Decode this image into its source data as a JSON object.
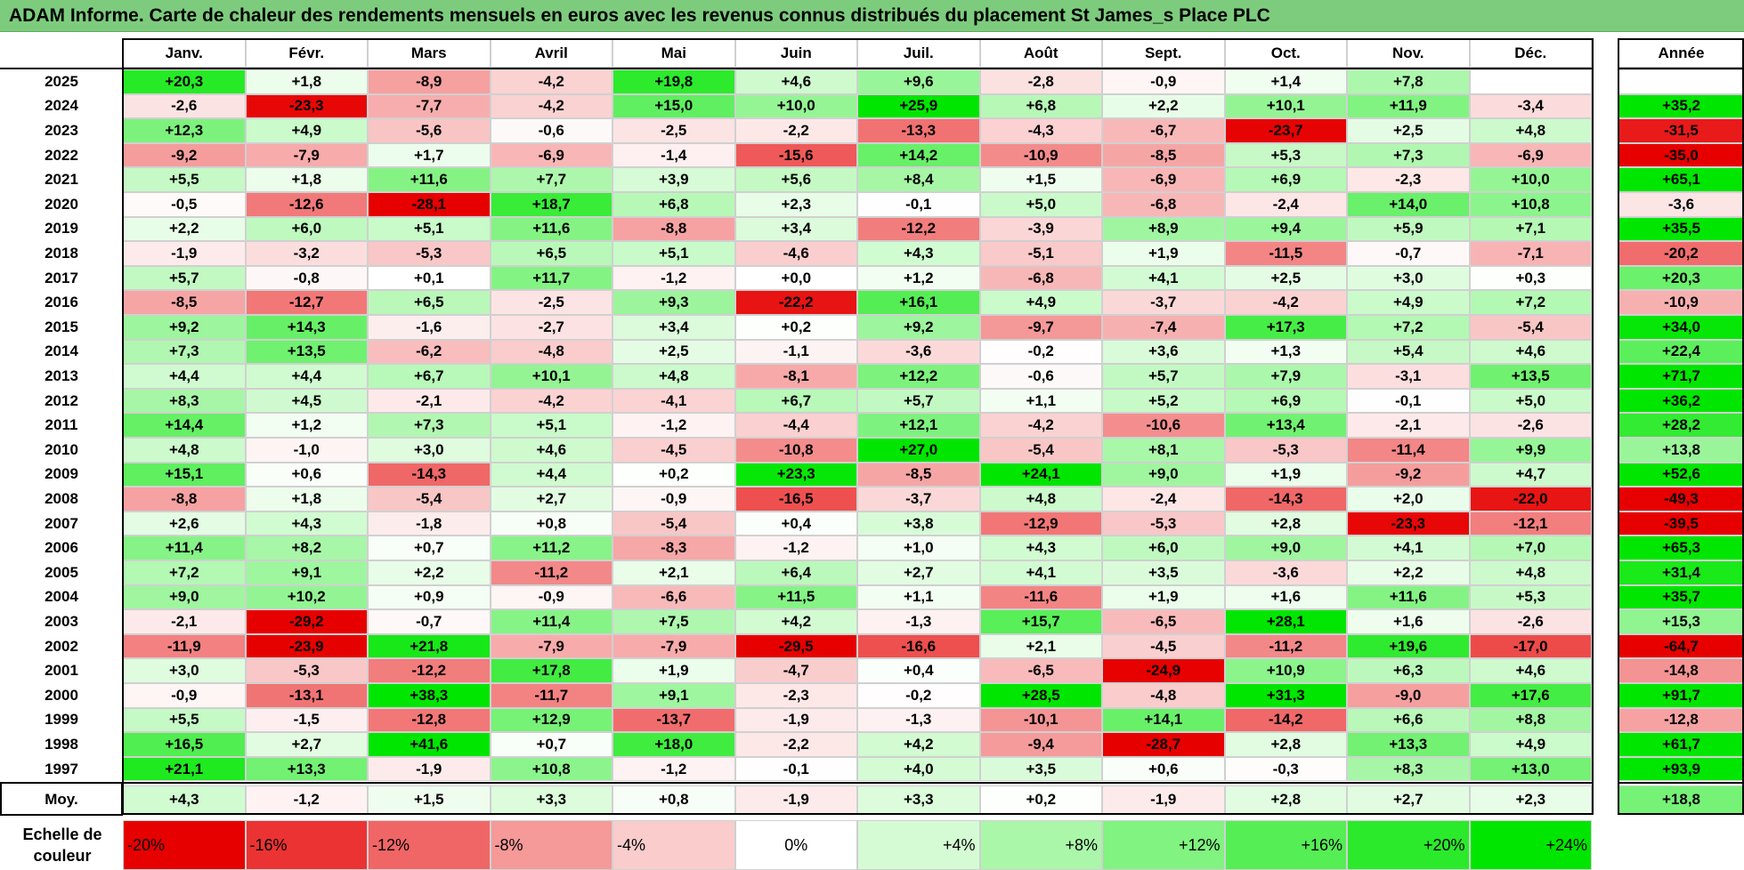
{
  "title": "ADAM Informe. Carte de chaleur des rendements mensuels en euros avec les revenus connus distribués du placement St James_s Place PLC",
  "chart_data": {
    "type": "heatmap",
    "title": "ADAM Informe. Carte de chaleur des rendements mensuels en euros avec les revenus connus distribués du placement St James_s Place PLC",
    "columns": [
      "Janv.",
      "Févr.",
      "Mars",
      "Avril",
      "Mai",
      "Juin",
      "Juil.",
      "Août",
      "Sept.",
      "Oct.",
      "Nov.",
      "Déc."
    ],
    "year_column_label": "Année",
    "rows": [
      {
        "year": "2025",
        "values": [
          "+20,3",
          "+1,8",
          "-8,9",
          "-4,2",
          "+19,8",
          "+4,6",
          "+9,6",
          "-2,8",
          "-0,9",
          "+1,4",
          "+7,8",
          ""
        ],
        "annual": ""
      },
      {
        "year": "2024",
        "values": [
          "-2,6",
          "-23,3",
          "-7,7",
          "-4,2",
          "+15,0",
          "+10,0",
          "+25,9",
          "+6,8",
          "+2,2",
          "+10,1",
          "+11,9",
          "-3,4"
        ],
        "annual": "+35,2"
      },
      {
        "year": "2023",
        "values": [
          "+12,3",
          "+4,9",
          "-5,6",
          "-0,6",
          "-2,5",
          "-2,2",
          "-13,3",
          "-4,3",
          "-6,7",
          "-23,7",
          "+2,5",
          "+4,8"
        ],
        "annual": "-31,5"
      },
      {
        "year": "2022",
        "values": [
          "-9,2",
          "-7,9",
          "+1,7",
          "-6,9",
          "-1,4",
          "-15,6",
          "+14,2",
          "-10,9",
          "-8,5",
          "+5,3",
          "+7,3",
          "-6,9"
        ],
        "annual": "-35,0"
      },
      {
        "year": "2021",
        "values": [
          "+5,5",
          "+1,8",
          "+11,6",
          "+7,7",
          "+3,9",
          "+5,6",
          "+8,4",
          "+1,5",
          "-6,9",
          "+6,9",
          "-2,3",
          "+10,0"
        ],
        "annual": "+65,1"
      },
      {
        "year": "2020",
        "values": [
          "-0,5",
          "-12,6",
          "-28,1",
          "+18,7",
          "+6,8",
          "+2,3",
          "-0,1",
          "+5,0",
          "-6,8",
          "-2,4",
          "+14,0",
          "+10,8"
        ],
        "annual": "-3,6"
      },
      {
        "year": "2019",
        "values": [
          "+2,2",
          "+6,0",
          "+5,1",
          "+11,6",
          "-8,8",
          "+3,4",
          "-12,2",
          "-3,9",
          "+8,9",
          "+9,4",
          "+5,9",
          "+7,1"
        ],
        "annual": "+35,5"
      },
      {
        "year": "2018",
        "values": [
          "-1,9",
          "-3,2",
          "-5,3",
          "+6,5",
          "+5,1",
          "-4,6",
          "+4,3",
          "-5,1",
          "+1,9",
          "-11,5",
          "-0,7",
          "-7,1"
        ],
        "annual": "-20,2"
      },
      {
        "year": "2017",
        "values": [
          "+5,7",
          "-0,8",
          "+0,1",
          "+11,7",
          "-1,2",
          "+0,0",
          "+1,2",
          "-6,8",
          "+4,1",
          "+2,5",
          "+3,0",
          "+0,3"
        ],
        "annual": "+20,3"
      },
      {
        "year": "2016",
        "values": [
          "-8,5",
          "-12,7",
          "+6,5",
          "-2,5",
          "+9,3",
          "-22,2",
          "+16,1",
          "+4,9",
          "-3,7",
          "-4,2",
          "+4,9",
          "+7,2"
        ],
        "annual": "-10,9"
      },
      {
        "year": "2015",
        "values": [
          "+9,2",
          "+14,3",
          "-1,6",
          "-2,7",
          "+3,4",
          "+0,2",
          "+9,2",
          "-9,7",
          "-7,4",
          "+17,3",
          "+7,2",
          "-5,4"
        ],
        "annual": "+34,0"
      },
      {
        "year": "2014",
        "values": [
          "+7,3",
          "+13,5",
          "-6,2",
          "-4,8",
          "+2,5",
          "-1,1",
          "-3,6",
          "-0,2",
          "+3,6",
          "+1,3",
          "+5,4",
          "+4,6"
        ],
        "annual": "+22,4"
      },
      {
        "year": "2013",
        "values": [
          "+4,4",
          "+4,4",
          "+6,7",
          "+10,1",
          "+4,8",
          "-8,1",
          "+12,2",
          "-0,6",
          "+5,7",
          "+7,9",
          "-3,1",
          "+13,5"
        ],
        "annual": "+71,7"
      },
      {
        "year": "2012",
        "values": [
          "+8,3",
          "+4,5",
          "-2,1",
          "-4,2",
          "-4,1",
          "+6,7",
          "+5,7",
          "+1,1",
          "+5,2",
          "+6,9",
          "-0,1",
          "+5,0"
        ],
        "annual": "+36,2"
      },
      {
        "year": "2011",
        "values": [
          "+14,4",
          "+1,2",
          "+7,3",
          "+5,1",
          "-1,2",
          "-4,4",
          "+12,1",
          "-4,2",
          "-10,6",
          "+13,4",
          "-2,1",
          "-2,6"
        ],
        "annual": "+28,2"
      },
      {
        "year": "2010",
        "values": [
          "+4,8",
          "-1,0",
          "+3,0",
          "+4,6",
          "-4,5",
          "-10,8",
          "+27,0",
          "-5,4",
          "+8,1",
          "-5,3",
          "-11,4",
          "+9,9"
        ],
        "annual": "+13,8"
      },
      {
        "year": "2009",
        "values": [
          "+15,1",
          "+0,6",
          "-14,3",
          "+4,4",
          "+0,2",
          "+23,3",
          "-8,5",
          "+24,1",
          "+9,0",
          "+1,9",
          "-9,2",
          "+4,7"
        ],
        "annual": "+52,6"
      },
      {
        "year": "2008",
        "values": [
          "-8,8",
          "+1,8",
          "-5,4",
          "+2,7",
          "-0,9",
          "-16,5",
          "-3,7",
          "+4,8",
          "-2,4",
          "-14,3",
          "+2,0",
          "-22,0"
        ],
        "annual": "-49,3"
      },
      {
        "year": "2007",
        "values": [
          "+2,6",
          "+4,3",
          "-1,8",
          "+0,8",
          "-5,4",
          "+0,4",
          "+3,8",
          "-12,9",
          "-5,3",
          "+2,8",
          "-23,3",
          "-12,1"
        ],
        "annual": "-39,5"
      },
      {
        "year": "2006",
        "values": [
          "+11,4",
          "+8,2",
          "+0,7",
          "+11,2",
          "-8,3",
          "-1,2",
          "+1,0",
          "+4,3",
          "+6,0",
          "+9,0",
          "+4,1",
          "+7,0"
        ],
        "annual": "+65,3"
      },
      {
        "year": "2005",
        "values": [
          "+7,2",
          "+9,1",
          "+2,2",
          "-11,2",
          "+2,1",
          "+6,4",
          "+2,7",
          "+4,1",
          "+3,5",
          "-3,6",
          "+2,2",
          "+4,8"
        ],
        "annual": "+31,4"
      },
      {
        "year": "2004",
        "values": [
          "+9,0",
          "+10,2",
          "+0,9",
          "-0,9",
          "-6,6",
          "+11,5",
          "+1,1",
          "-11,6",
          "+1,9",
          "+1,6",
          "+11,6",
          "+5,3"
        ],
        "annual": "+35,7"
      },
      {
        "year": "2003",
        "values": [
          "-2,1",
          "-29,2",
          "-0,7",
          "+11,4",
          "+7,5",
          "+4,2",
          "-1,3",
          "+15,7",
          "-6,5",
          "+28,1",
          "+1,6",
          "-2,6"
        ],
        "annual": "+15,3"
      },
      {
        "year": "2002",
        "values": [
          "-11,9",
          "-23,9",
          "+21,8",
          "-7,9",
          "-7,9",
          "-29,5",
          "-16,6",
          "+2,1",
          "-4,5",
          "-11,2",
          "+19,6",
          "-17,0"
        ],
        "annual": "-64,7"
      },
      {
        "year": "2001",
        "values": [
          "+3,0",
          "-5,3",
          "-12,2",
          "+17,8",
          "+1,9",
          "-4,7",
          "+0,4",
          "-6,5",
          "-24,9",
          "+10,9",
          "+6,3",
          "+4,6"
        ],
        "annual": "-14,8"
      },
      {
        "year": "2000",
        "values": [
          "-0,9",
          "-13,1",
          "+38,3",
          "-11,7",
          "+9,1",
          "-2,3",
          "-0,2",
          "+28,5",
          "-4,8",
          "+31,3",
          "-9,0",
          "+17,6"
        ],
        "annual": "+91,7"
      },
      {
        "year": "1999",
        "values": [
          "+5,5",
          "-1,5",
          "-12,8",
          "+12,9",
          "-13,7",
          "-1,9",
          "-1,3",
          "-10,1",
          "+14,1",
          "-14,2",
          "+6,6",
          "+8,8"
        ],
        "annual": "-12,8"
      },
      {
        "year": "1998",
        "values": [
          "+16,5",
          "+2,7",
          "+41,6",
          "+0,7",
          "+18,0",
          "-2,2",
          "+4,2",
          "-9,4",
          "-28,7",
          "+2,8",
          "+13,3",
          "+4,9"
        ],
        "annual": "+61,7"
      },
      {
        "year": "1997",
        "values": [
          "+21,1",
          "+13,3",
          "-1,9",
          "+10,8",
          "-1,2",
          "-0,1",
          "+4,0",
          "+3,5",
          "+0,6",
          "-0,3",
          "+8,3",
          "+13,0"
        ],
        "annual": "+93,9"
      }
    ],
    "average": {
      "label": "Moy.",
      "values": [
        "+4,3",
        "-1,2",
        "+1,5",
        "+3,3",
        "+0,8",
        "-1,9",
        "+3,3",
        "+0,2",
        "-1,9",
        "+2,8",
        "+2,7",
        "+2,3"
      ],
      "annual": "+18,8"
    },
    "color_scale": {
      "label": "Echelle de couleur",
      "stops": [
        "-20%",
        "-16%",
        "-12%",
        "-8%",
        "-4%",
        "0%",
        "+4%",
        "+8%",
        "+12%",
        "+16%",
        "+20%",
        "+24%"
      ],
      "colors": {
        "negative_max": "#ff0000",
        "zero": "#ffffff",
        "positive_max": "#00e600"
      }
    }
  }
}
